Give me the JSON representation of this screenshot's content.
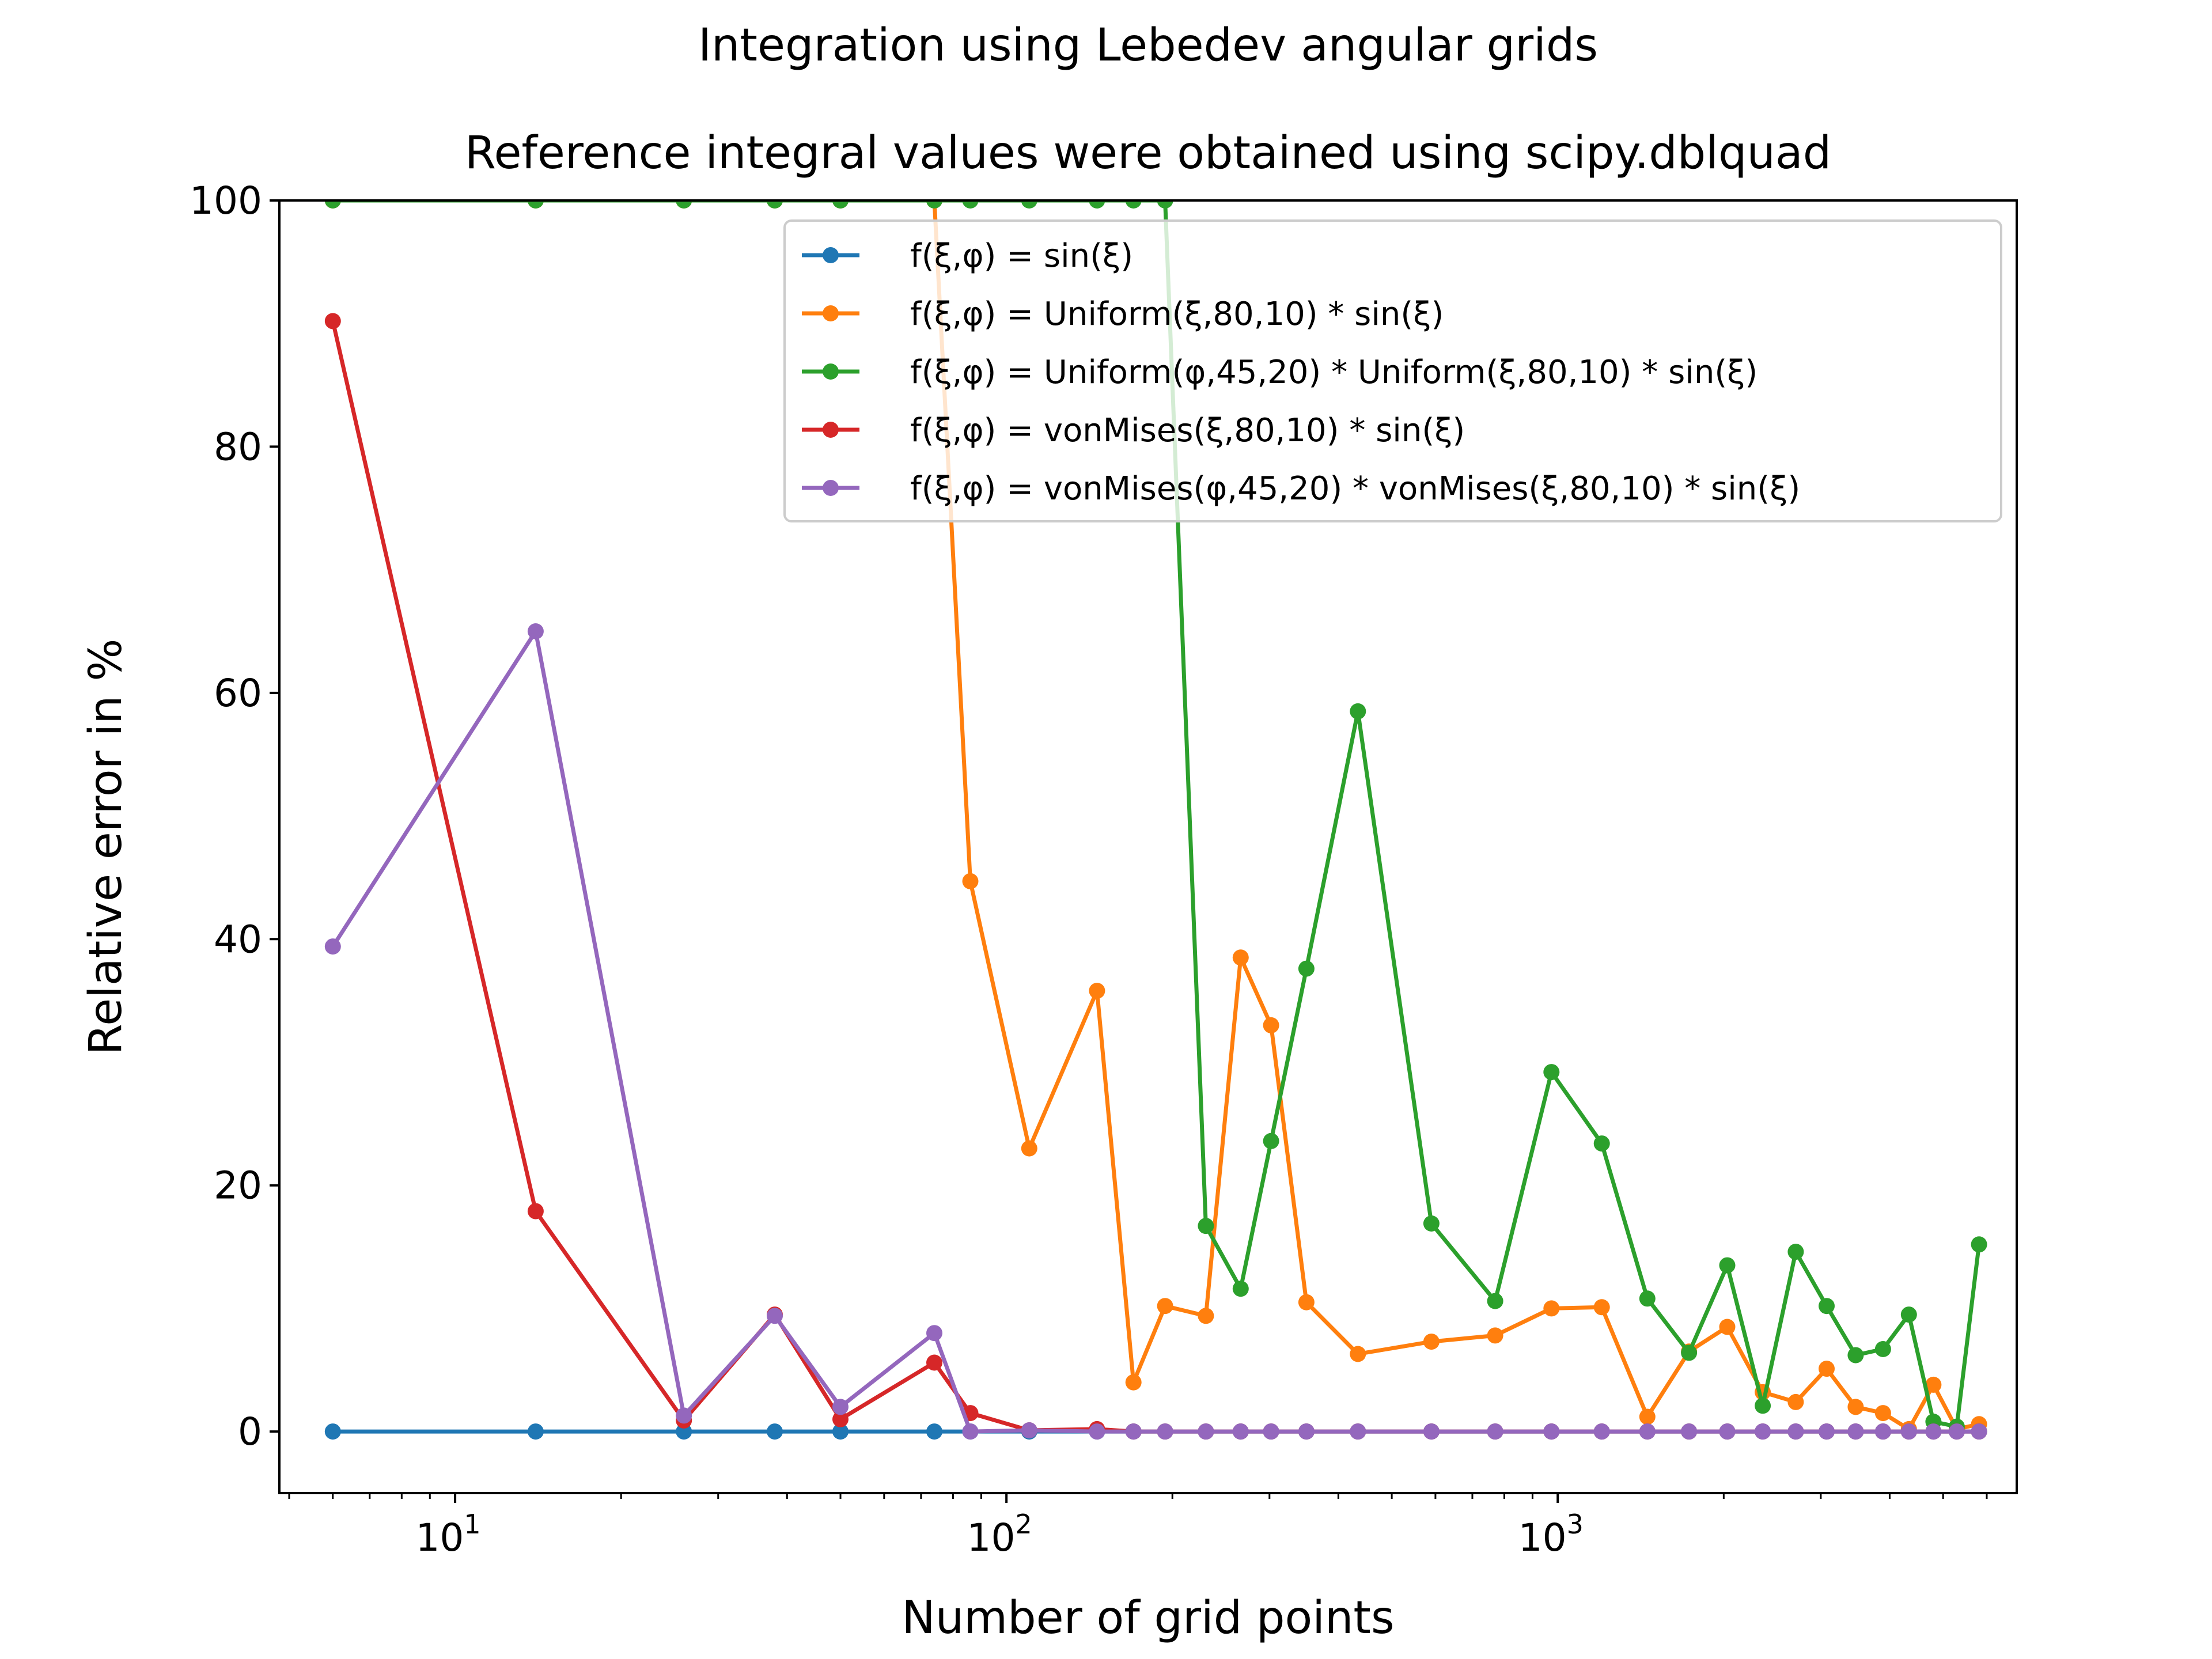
{
  "chart_data": {
    "type": "line",
    "suptitle": "Integration using Lebedev angular grids",
    "title": "Reference integral values were obtained using scipy.dblquad",
    "xlabel": "Number of grid points",
    "ylabel": "Relative error in %",
    "x_scale": "log",
    "xlim": [
      4.8,
      6800
    ],
    "ylim": [
      -5,
      100
    ],
    "x_ticks": [
      {
        "value": 10,
        "base": "10",
        "exp": "1"
      },
      {
        "value": 100,
        "base": "10",
        "exp": "2"
      },
      {
        "value": 1000,
        "base": "10",
        "exp": "3"
      }
    ],
    "y_ticks": [
      {
        "value": 0,
        "label": "0"
      },
      {
        "value": 20,
        "label": "20"
      },
      {
        "value": 40,
        "label": "40"
      },
      {
        "value": 60,
        "label": "60"
      },
      {
        "value": 80,
        "label": "80"
      },
      {
        "value": 100,
        "label": "100"
      }
    ],
    "legend_position": "upper right",
    "grid": false,
    "x": [
      6,
      14,
      26,
      38,
      50,
      74,
      86,
      110,
      146,
      170,
      194,
      230,
      266,
      302,
      350,
      434,
      590,
      770,
      974,
      1202,
      1454,
      1730,
      2030,
      2354,
      2702,
      3074,
      3470,
      3890,
      4334,
      4802,
      5294,
      5810
    ],
    "series": [
      {
        "name": "f(ξ,φ) = sin(ξ)",
        "color": "#1f77b4",
        "values": [
          0,
          0,
          0,
          0,
          0,
          0,
          0,
          0,
          0,
          0,
          0,
          0,
          0,
          0,
          0,
          0,
          0,
          0,
          0,
          0,
          0,
          0,
          0,
          0,
          0,
          0,
          0,
          0,
          0,
          0,
          0,
          0
        ]
      },
      {
        "name": "f(ξ,φ) = Uniform(ξ,80,10) * sin(ξ)",
        "color": "#ff7f0e",
        "values": [
          100,
          100,
          100,
          100,
          100,
          100,
          44.7,
          23,
          35.8,
          4,
          10.2,
          9.4,
          38.5,
          33,
          10.5,
          6.3,
          7.3,
          7.8,
          10,
          10.1,
          1.2,
          6.5,
          8.5,
          3.2,
          2.4,
          5.1,
          2,
          1.5,
          0.2,
          3.8,
          0.2,
          0.6
        ]
      },
      {
        "name": "f(ξ,φ) = Uniform(φ,45,20) * Uniform(ξ,80,10) * sin(ξ)",
        "color": "#2ca02c",
        "values": [
          100,
          100,
          100,
          100,
          100,
          100,
          100,
          100,
          100,
          100,
          100,
          16.7,
          11.6,
          23.6,
          37.6,
          58.5,
          16.9,
          10.6,
          29.2,
          23.4,
          10.8,
          6.4,
          13.5,
          2.1,
          14.6,
          10.2,
          6.2,
          6.7,
          9.5,
          0.8,
          0.4,
          15.2
        ]
      },
      {
        "name": "f(ξ,φ) = vonMises(ξ,80,10) * sin(ξ)",
        "color": "#d62728",
        "values": [
          90.2,
          17.9,
          0.9,
          9.5,
          1,
          5.6,
          1.5,
          0.1,
          0.2,
          0,
          0,
          0,
          0,
          0,
          0,
          0,
          0,
          0,
          0,
          0,
          0,
          0,
          0,
          0,
          0,
          0,
          0,
          0,
          0,
          0,
          0,
          0
        ]
      },
      {
        "name": "f(ξ,φ) = vonMises(φ,45,20) * vonMises(ξ,80,10) * sin(ξ)",
        "color": "#9467bd",
        "values": [
          39.4,
          65,
          1.3,
          9.4,
          2,
          8,
          0,
          0.1,
          0,
          0,
          0,
          0,
          0,
          0,
          0,
          0,
          0,
          0,
          0,
          0,
          0,
          0,
          0,
          0,
          0,
          0,
          0,
          0,
          0,
          0,
          0,
          0
        ]
      }
    ]
  }
}
